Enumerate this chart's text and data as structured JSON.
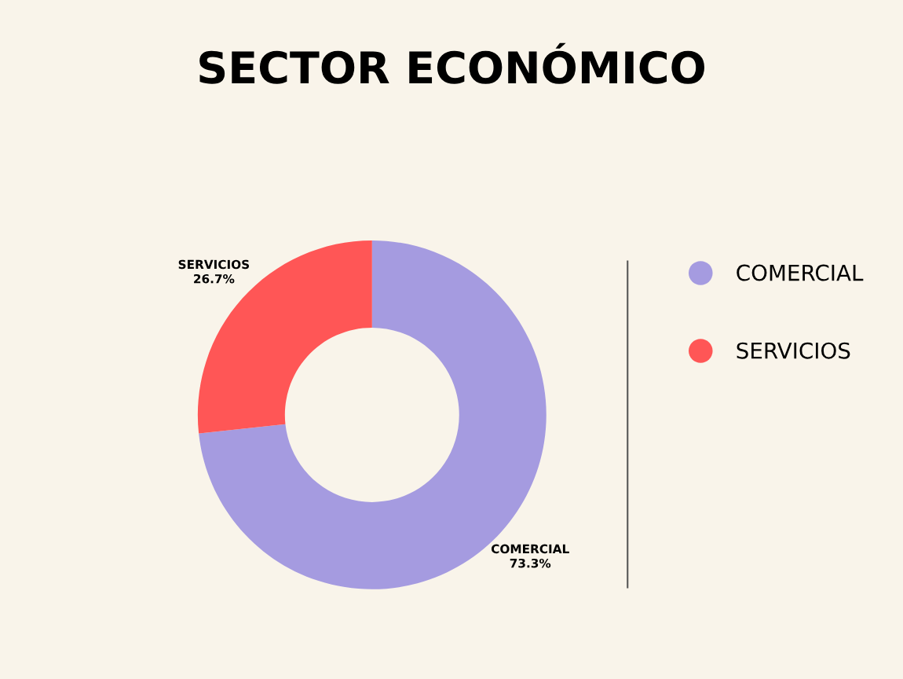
{
  "chart_data": {
    "type": "donut",
    "title": "SECTOR ECONÓMICO",
    "categories": [
      "COMERCIAL",
      "SERVICIOS"
    ],
    "values": [
      73.3,
      26.7
    ],
    "colors": [
      "#a59be0",
      "#ff5656"
    ],
    "value_labels": [
      "73.3%",
      "26.7%"
    ],
    "legend": "right"
  }
}
